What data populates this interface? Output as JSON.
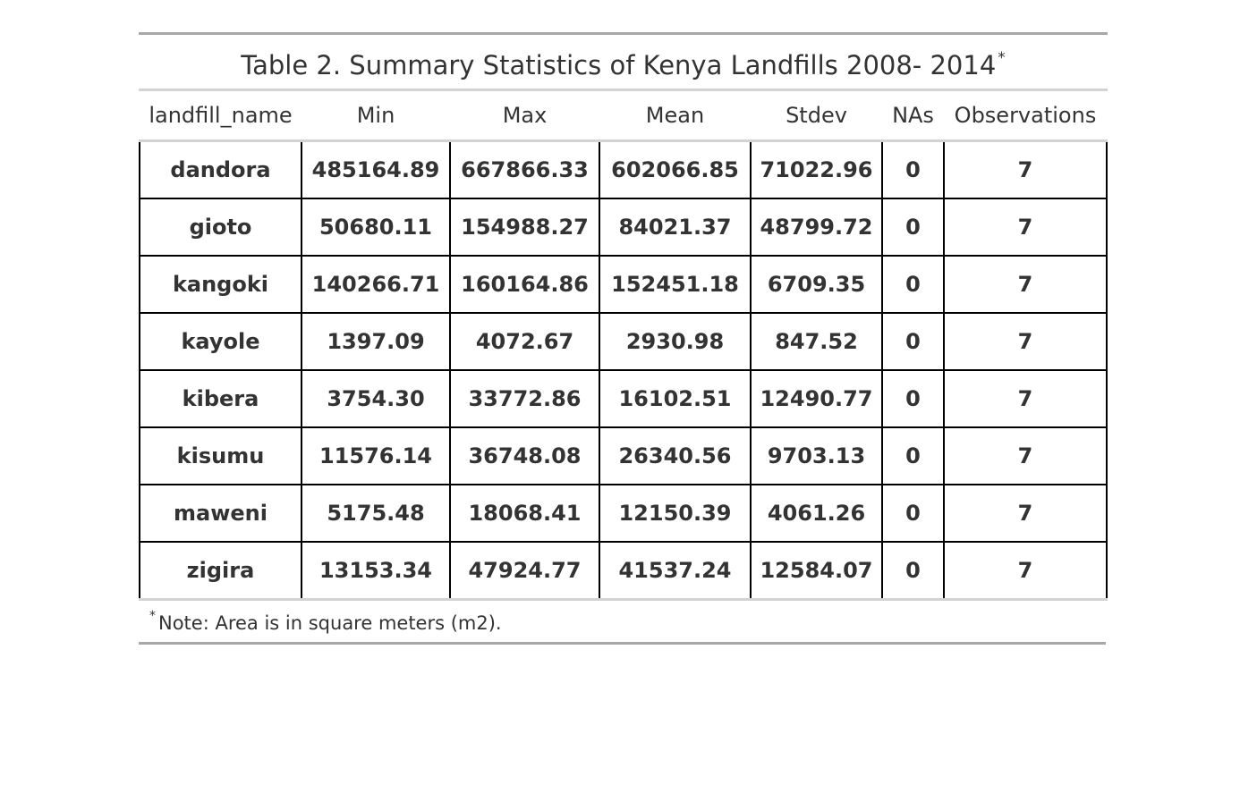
{
  "table": {
    "caption": "Table 2. Summary Statistics of Kenya Landfills 2008- 2014",
    "caption_marker": "*",
    "columns": [
      "landfill_name",
      "Min",
      "Max",
      "Mean",
      "Stdev",
      "NAs",
      "Observations"
    ],
    "rows": [
      [
        "dandora",
        "485164.89",
        "667866.33",
        "602066.85",
        "71022.96",
        "0",
        "7"
      ],
      [
        "gioto",
        "50680.11",
        "154988.27",
        "84021.37",
        "48799.72",
        "0",
        "7"
      ],
      [
        "kangoki",
        "140266.71",
        "160164.86",
        "152451.18",
        "6709.35",
        "0",
        "7"
      ],
      [
        "kayole",
        "1397.09",
        "4072.67",
        "2930.98",
        "847.52",
        "0",
        "7"
      ],
      [
        "kibera",
        "3754.30",
        "33772.86",
        "16102.51",
        "12490.77",
        "0",
        "7"
      ],
      [
        "kisumu",
        "11576.14",
        "36748.08",
        "26340.56",
        "9703.13",
        "0",
        "7"
      ],
      [
        "maweni",
        "5175.48",
        "18068.41",
        "12150.39",
        "4061.26",
        "0",
        "7"
      ],
      [
        "zigira",
        "13153.34",
        "47924.77",
        "41537.24",
        "12584.07",
        "0",
        "7"
      ]
    ],
    "footnote_marker": "*",
    "footnote": "Note: Area is in square meters (m2)."
  }
}
